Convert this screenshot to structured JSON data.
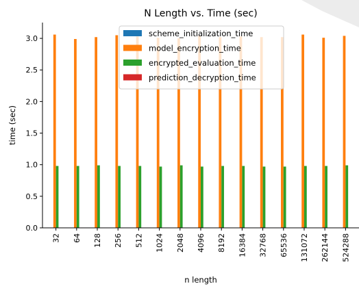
{
  "chart_data": {
    "type": "bar",
    "title": "N Length vs. Time (sec)",
    "xlabel": "n length",
    "ylabel": "time (sec)",
    "categories": [
      "32",
      "64",
      "128",
      "256",
      "512",
      "1024",
      "2048",
      "4096",
      "8192",
      "16384",
      "32768",
      "65536",
      "131072",
      "262144",
      "524288"
    ],
    "ylim": [
      0,
      3.25
    ],
    "yticks": [
      "0.0",
      "0.5",
      "1.0",
      "1.5",
      "2.0",
      "2.5",
      "3.0"
    ],
    "grid": false,
    "legend_position": "top-center",
    "series": [
      {
        "name": "scheme_initialization_time",
        "color": "#1f77b4",
        "values": [
          0.005,
          0.005,
          0.005,
          0.005,
          0.005,
          0.005,
          0.005,
          0.005,
          0.005,
          0.005,
          0.005,
          0.005,
          0.005,
          0.005,
          0.005
        ]
      },
      {
        "name": "model_encryption_time",
        "color": "#ff7f0e",
        "values": [
          3.06,
          2.99,
          3.02,
          3.05,
          3.03,
          3.01,
          3.0,
          3.04,
          3.02,
          3.03,
          3.02,
          3.02,
          3.06,
          3.01,
          3.04
        ]
      },
      {
        "name": "encrypted_evaluation_time",
        "color": "#2ca02c",
        "values": [
          0.98,
          0.98,
          0.99,
          0.98,
          0.98,
          0.97,
          0.99,
          0.97,
          0.98,
          0.98,
          0.97,
          0.97,
          0.98,
          0.98,
          0.99
        ]
      },
      {
        "name": "prediction_decryption_time",
        "color": "#d62728",
        "values": [
          0.002,
          0.002,
          0.002,
          0.002,
          0.002,
          0.002,
          0.002,
          0.002,
          0.002,
          0.002,
          0.002,
          0.002,
          0.002,
          0.002,
          0.002
        ]
      }
    ]
  }
}
